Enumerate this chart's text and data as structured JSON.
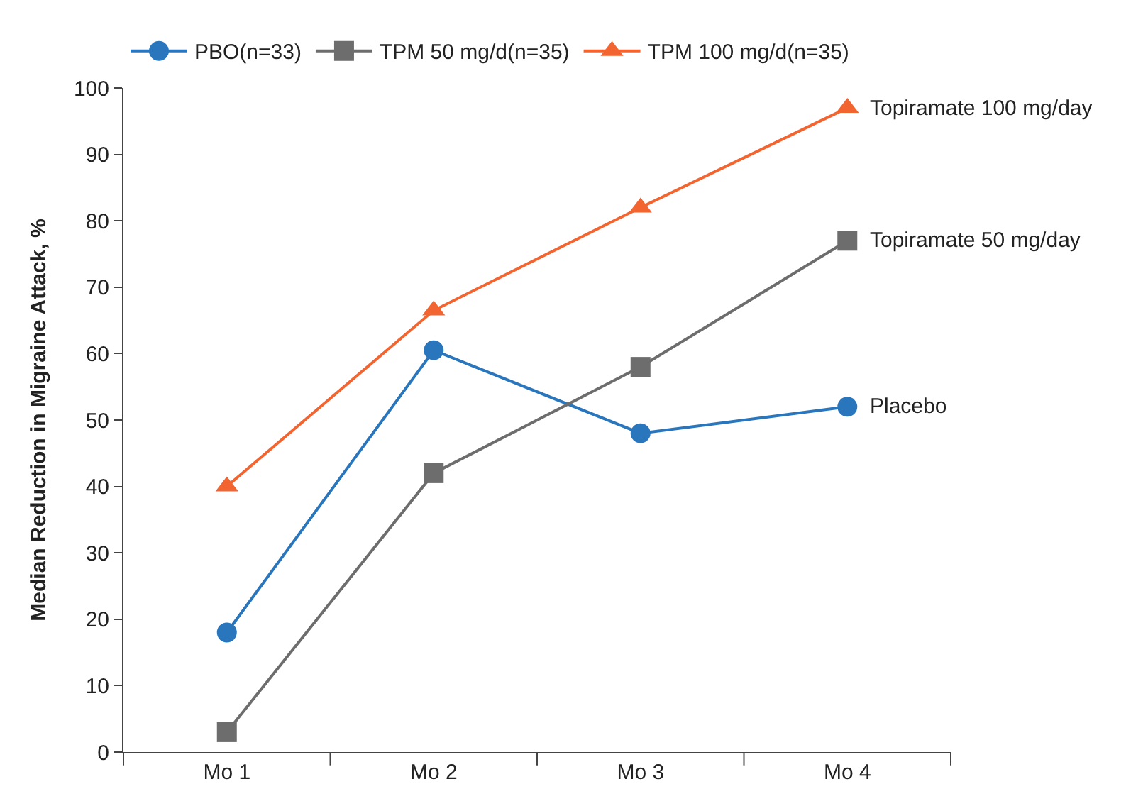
{
  "chart_data": {
    "type": "line",
    "ylabel": "Median Reduction in Migraine Attack, %",
    "categories": [
      "Mo 1",
      "Mo 2",
      "Mo 3",
      "Mo 4"
    ],
    "series": [
      {
        "name": "PBO(n=33)",
        "color": "#2a76bd",
        "marker": "circle",
        "values": [
          18,
          60.5,
          48,
          52
        ]
      },
      {
        "name": "TPM 50 mg/d(n=35)",
        "color": "#6d6d6d",
        "marker": "square",
        "values": [
          3,
          42,
          58,
          77
        ]
      },
      {
        "name": "TPM 100 mg/d(n=35)",
        "color": "#f26430",
        "marker": "triangle",
        "values": [
          40,
          66.5,
          82,
          97
        ]
      }
    ],
    "ylim": [
      0,
      100
    ],
    "yticks": [
      0,
      10,
      20,
      30,
      40,
      50,
      60,
      70,
      80,
      90,
      100
    ],
    "legend": "top",
    "line_style": "solid",
    "annotations": [
      {
        "text": "Topiramate 100 mg/day",
        "x": "Mo 4",
        "y": 97
      },
      {
        "text": "Topiramate 50 mg/day",
        "x": "Mo 4",
        "y": 77
      },
      {
        "text": "Placebo",
        "x": "Mo 4",
        "y": 52
      }
    ]
  }
}
